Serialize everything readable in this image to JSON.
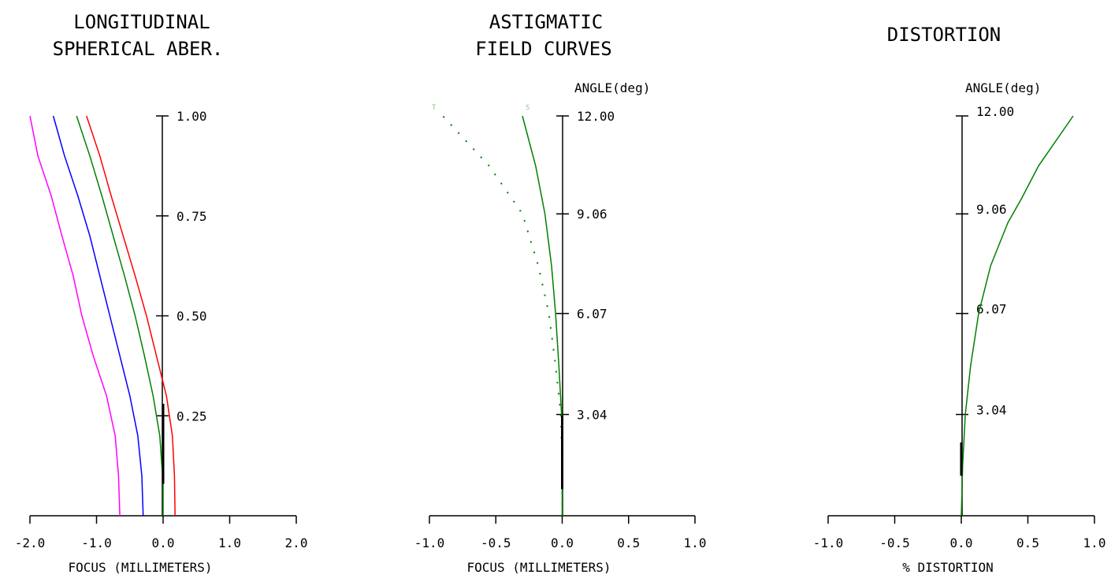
{
  "chart_data": [
    {
      "type": "line",
      "title": [
        "LONGITUDINAL",
        "SPHERICAL ABER."
      ],
      "xlabel": "FOCUS (MILLIMETERS)",
      "ylabel": "",
      "xlim": [
        -2.0,
        2.0
      ],
      "ylim": [
        0,
        1.0
      ],
      "x_ticks": [
        "-2.0",
        "-1.0",
        "0.0",
        "1.0",
        "2.0"
      ],
      "y_ticks": [
        "0.25",
        "0.50",
        "0.75",
        "1.00"
      ],
      "y_tick_values": [
        0.25,
        0.5,
        0.75,
        1.0
      ],
      "series": [
        {
          "color": "#ff00ff",
          "points": [
            [
              -0.65,
              0
            ],
            [
              -0.67,
              0.1
            ],
            [
              -0.72,
              0.2
            ],
            [
              -0.85,
              0.3
            ],
            [
              -1.05,
              0.4
            ],
            [
              -1.22,
              0.5
            ],
            [
              -1.35,
              0.6
            ],
            [
              -1.52,
              0.7
            ],
            [
              -1.68,
              0.8
            ],
            [
              -1.88,
              0.9
            ],
            [
              -2.0,
              1.0
            ]
          ]
        },
        {
          "color": "#0000ff",
          "points": [
            [
              -0.3,
              0
            ],
            [
              -0.32,
              0.1
            ],
            [
              -0.38,
              0.2
            ],
            [
              -0.5,
              0.3
            ],
            [
              -0.65,
              0.4
            ],
            [
              -0.8,
              0.5
            ],
            [
              -0.95,
              0.6
            ],
            [
              -1.1,
              0.7
            ],
            [
              -1.28,
              0.8
            ],
            [
              -1.48,
              0.9
            ],
            [
              -1.65,
              1.0
            ]
          ]
        },
        {
          "color": "#008000",
          "points": [
            [
              0.0,
              0
            ],
            [
              0.0,
              0.08
            ],
            [
              -0.05,
              0.2
            ],
            [
              -0.15,
              0.3
            ],
            [
              -0.28,
              0.4
            ],
            [
              -0.42,
              0.5
            ],
            [
              -0.58,
              0.6
            ],
            [
              -0.75,
              0.7
            ],
            [
              -0.92,
              0.8
            ],
            [
              -1.1,
              0.9
            ],
            [
              -1.3,
              1.0
            ]
          ]
        },
        {
          "color": "#ff0000",
          "points": [
            [
              0.18,
              0
            ],
            [
              0.17,
              0.1
            ],
            [
              0.14,
              0.2
            ],
            [
              0.05,
              0.3
            ],
            [
              -0.1,
              0.4
            ],
            [
              -0.25,
              0.5
            ],
            [
              -0.42,
              0.6
            ],
            [
              -0.6,
              0.7
            ],
            [
              -0.78,
              0.8
            ],
            [
              -0.95,
              0.9
            ],
            [
              -1.15,
              1.0
            ]
          ]
        }
      ],
      "marker_line": {
        "color": "#000000",
        "from": [
          0.0,
          0.08
        ],
        "to": [
          0.0,
          0.28
        ]
      }
    },
    {
      "type": "line",
      "title": [
        "ASTIGMATIC",
        "FIELD CURVES"
      ],
      "xlabel": "FOCUS (MILLIMETERS)",
      "ylabel": "ANGLE(deg)",
      "xlim": [
        -1.0,
        1.0
      ],
      "ylim": [
        0,
        12.0
      ],
      "x_ticks": [
        "-1.0",
        "-0.5",
        "0.0",
        "0.5",
        "1.0"
      ],
      "y_ticks": [
        "3.04",
        "6.07",
        "9.06",
        "12.00"
      ],
      "y_tick_values": [
        3.04,
        6.07,
        9.06,
        12.0
      ],
      "series": [
        {
          "name": "S",
          "color": "#008000",
          "dashed": false,
          "points": [
            [
              0,
              0
            ],
            [
              0,
              1.5
            ],
            [
              -0.005,
              3.04
            ],
            [
              -0.025,
              4.5
            ],
            [
              -0.05,
              6.07
            ],
            [
              -0.08,
              7.5
            ],
            [
              -0.13,
              9.06
            ],
            [
              -0.2,
              10.5
            ],
            [
              -0.3,
              12.0
            ]
          ]
        },
        {
          "name": "T",
          "color": "#008000",
          "dashed": true,
          "points": [
            [
              0,
              0
            ],
            [
              0,
              1.5
            ],
            [
              -0.01,
              3.04
            ],
            [
              -0.05,
              4.5
            ],
            [
              -0.1,
              6.07
            ],
            [
              -0.18,
              7.5
            ],
            [
              -0.3,
              9.06
            ],
            [
              -0.55,
              10.5
            ],
            [
              -0.9,
              12.0
            ]
          ]
        }
      ],
      "marker_line": {
        "color": "#000000",
        "from": [
          0.0,
          0.8
        ],
        "to": [
          0.0,
          3.0
        ]
      },
      "series_labels": {
        "t": "T",
        "s": "S"
      }
    },
    {
      "type": "line",
      "title": [
        "DISTORTION"
      ],
      "xlabel": "% DISTORTION",
      "ylabel": "ANGLE(deg)",
      "xlim": [
        -1.0,
        1.0
      ],
      "ylim": [
        0,
        12.0
      ],
      "x_ticks": [
        "-1.0",
        "-0.5",
        "0.0",
        "0.5",
        "1.0"
      ],
      "y_ticks": [
        "3.04",
        "6.07",
        "9.06",
        "12.00"
      ],
      "y_tick_values": [
        3.04,
        6.07,
        9.06,
        12.0
      ],
      "series": [
        {
          "color": "#008000",
          "points": [
            [
              0,
              0
            ],
            [
              0.01,
              1.5
            ],
            [
              0.03,
              3.04
            ],
            [
              0.07,
              4.5
            ],
            [
              0.13,
              6.07
            ],
            [
              0.22,
              7.5
            ],
            [
              0.35,
              8.8
            ],
            [
              0.45,
              9.5
            ],
            [
              0.58,
              10.5
            ],
            [
              0.84,
              12.0
            ]
          ]
        }
      ],
      "marker_line": {
        "color": "#000000",
        "from": [
          0.0,
          1.2
        ],
        "to": [
          0.0,
          2.2
        ]
      }
    }
  ]
}
